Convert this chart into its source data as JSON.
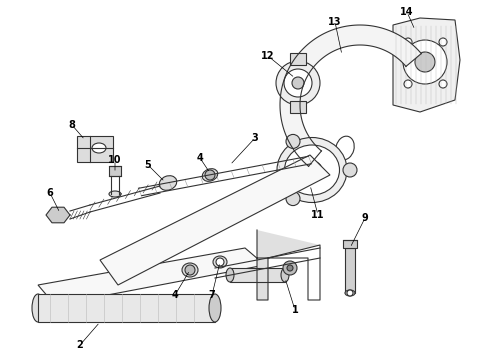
{
  "bg_color": "#ffffff",
  "line_color": "#333333",
  "label_color": "#000000",
  "label_fontsize": 7.0,
  "fig_width": 4.9,
  "fig_height": 3.6,
  "dpi": 100
}
